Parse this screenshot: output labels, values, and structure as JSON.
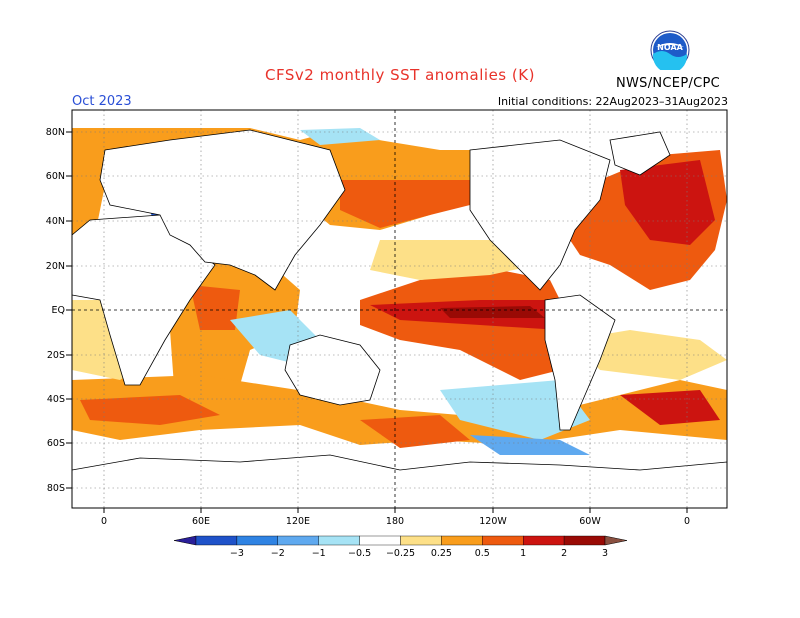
{
  "header": {
    "title": "CFSv2 monthly SST anomalies (K)",
    "forecast_month": "Oct 2023",
    "initial_conditions": "Initial conditions: 22Aug2023–31Aug2023",
    "agency": "NWS/NCEP/CPC",
    "logo_text": "NOAA"
  },
  "map": {
    "projection": "cylindrical equidistant",
    "center_longitude": "180",
    "reference_lines": [
      "EQ",
      "180"
    ],
    "lat_labels": [
      "80N",
      "60N",
      "40N",
      "20N",
      "EQ",
      "20S",
      "40S",
      "60S",
      "80S"
    ],
    "lon_labels": [
      "0",
      "60E",
      "120E",
      "180",
      "120W",
      "60W",
      "0"
    ]
  },
  "colorbar": {
    "tick_labels": [
      "−3",
      "−2",
      "−1",
      "−0.5",
      "−0.25",
      "0.25",
      "0.5",
      "1",
      "2",
      "3"
    ],
    "colors": [
      "#2a1f99",
      "#1f52c9",
      "#2f83e3",
      "#5fa9ef",
      "#a6e3f5",
      "#ffffff",
      "#fde088",
      "#f99d1c",
      "#ee5a0f",
      "#cc1410",
      "#990a05",
      "#8a5040"
    ]
  }
}
